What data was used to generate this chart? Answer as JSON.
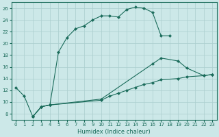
{
  "xlabel": "Humidex (Indice chaleur)",
  "bg_color": "#cce8e8",
  "grid_color": "#aacece",
  "line_color": "#1a6b5a",
  "xlim": [
    -0.5,
    23.5
  ],
  "ylim": [
    7,
    27
  ],
  "yticks": [
    8,
    10,
    12,
    14,
    16,
    18,
    20,
    22,
    24,
    26
  ],
  "xticks": [
    0,
    1,
    2,
    3,
    4,
    5,
    6,
    7,
    8,
    9,
    10,
    11,
    12,
    13,
    14,
    15,
    16,
    17,
    18,
    19,
    20,
    21,
    22,
    23
  ],
  "series": [
    {
      "x": [
        0,
        1,
        2,
        3,
        4,
        5,
        6,
        7,
        8,
        9,
        10,
        11,
        12,
        13,
        14,
        15,
        16,
        17,
        18
      ],
      "y": [
        12.5,
        11.0,
        7.5,
        9.2,
        9.5,
        18.5,
        21.0,
        22.5,
        23.0,
        24.0,
        24.7,
        24.7,
        24.5,
        25.8,
        26.2,
        26.0,
        25.3,
        21.3,
        21.3
      ]
    },
    {
      "x": [
        2,
        3,
        4,
        10,
        16,
        17,
        19,
        20,
        22,
        23
      ],
      "y": [
        7.5,
        9.2,
        9.5,
        10.5,
        16.5,
        17.5,
        17.0,
        15.8,
        14.5,
        14.7
      ]
    },
    {
      "x": [
        2,
        3,
        4,
        10,
        11,
        12,
        13,
        14,
        15,
        16,
        17,
        19,
        20,
        22,
        23
      ],
      "y": [
        7.5,
        9.2,
        9.5,
        10.3,
        11.0,
        11.5,
        12.0,
        12.5,
        13.0,
        13.3,
        13.8,
        14.0,
        14.3,
        14.5,
        14.7
      ]
    }
  ]
}
